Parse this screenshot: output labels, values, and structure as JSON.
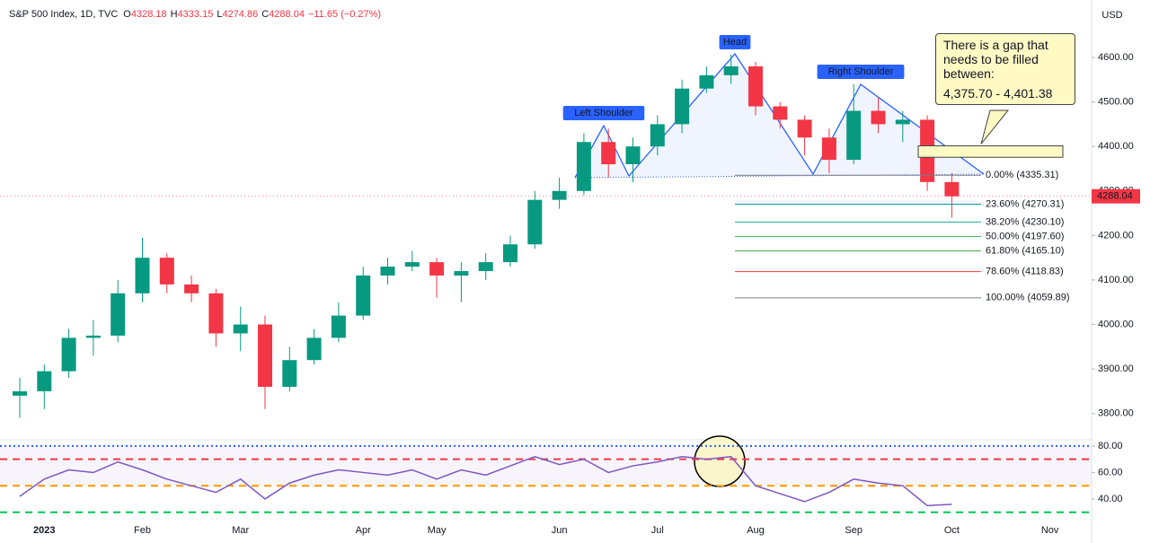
{
  "header": {
    "symbol": "S&P 500 Index, 1D, TVC",
    "ohlc": [
      {
        "label": "O",
        "value": "4328.18"
      },
      {
        "label": "H",
        "value": "4333.15"
      },
      {
        "label": "L",
        "value": "4274.86"
      },
      {
        "label": "C",
        "value": "4288.04"
      }
    ],
    "change": "−11.65 (−0.27%)",
    "currency": "USD"
  },
  "chart_data": [
    {
      "type": "candlestick",
      "categories": [
        null,
        "2023",
        null,
        null,
        null,
        "Feb",
        null,
        null,
        null,
        "Mar",
        null,
        null,
        null,
        null,
        "Apr",
        null,
        null,
        "May",
        null,
        null,
        null,
        null,
        "Jun",
        null,
        null,
        null,
        "Jul",
        null,
        null,
        null,
        "Aug",
        null,
        null,
        null,
        "Sep",
        null,
        null,
        null,
        "Oct",
        null,
        null,
        null,
        "Nov",
        null
      ],
      "open": [
        3840,
        3850,
        3895,
        3970,
        3975,
        4070,
        4150,
        4090,
        4070,
        3980,
        4000,
        3860,
        3920,
        3970,
        4020,
        4110,
        4130,
        4140,
        4110,
        4120,
        4140,
        4180,
        4280,
        4300,
        4410,
        4360,
        4400,
        4450,
        4530,
        4560,
        4580,
        4490,
        4460,
        4420,
        4370,
        4480,
        4450,
        4460,
        4320,
        null,
        null,
        null,
        null,
        null
      ],
      "high": [
        3880,
        3910,
        3990,
        4010,
        4100,
        4195,
        4160,
        4110,
        4080,
        4040,
        4020,
        3950,
        3990,
        4050,
        4130,
        4150,
        4165,
        4150,
        4140,
        4160,
        4200,
        4300,
        4330,
        4430,
        4440,
        4420,
        4470,
        4550,
        4580,
        4607,
        4590,
        4500,
        4470,
        4440,
        4540,
        4510,
        4480,
        4470,
        4340,
        null,
        null,
        null,
        null,
        null
      ],
      "low": [
        3790,
        3810,
        3880,
        3930,
        3960,
        4050,
        4070,
        4050,
        3950,
        3940,
        3810,
        3850,
        3910,
        3960,
        4010,
        4090,
        4120,
        4060,
        4050,
        4100,
        4130,
        4170,
        4260,
        4290,
        4330,
        4320,
        4380,
        4430,
        4520,
        4540,
        4470,
        4440,
        4380,
        4340,
        4360,
        4430,
        4410,
        4300,
        4240,
        null,
        null,
        null,
        null,
        null
      ],
      "close": [
        3850,
        3895,
        3970,
        3975,
        4070,
        4150,
        4090,
        4070,
        3980,
        4000,
        3860,
        3920,
        3970,
        4020,
        4110,
        4130,
        4140,
        4110,
        4120,
        4140,
        4180,
        4280,
        4300,
        4410,
        4360,
        4400,
        4450,
        4530,
        4560,
        4580,
        4490,
        4460,
        4420,
        4370,
        4480,
        4450,
        4460,
        4320,
        4288.04,
        null,
        null,
        null,
        null,
        null
      ],
      "up_color": "#089981",
      "down_color": "#f23645",
      "ylim": [
        3745,
        4729
      ],
      "yticks": [
        {
          "value": 3800,
          "label": "3800.00"
        },
        {
          "value": 3900,
          "label": "3900.00"
        },
        {
          "value": 4000,
          "label": "4000.00"
        },
        {
          "value": 4100,
          "label": "4100.00"
        },
        {
          "value": 4200,
          "label": "4200.00"
        },
        {
          "value": 4300,
          "label": "4300.00"
        },
        {
          "value": 4400,
          "label": "4400.00"
        },
        {
          "value": 4500,
          "label": "4500.00"
        },
        {
          "value": 4600,
          "label": "4600.00"
        }
      ],
      "last_price": {
        "value": 4288.04,
        "label": "4288.04"
      },
      "patterns": [
        "Left Shoulder",
        "Head",
        "Right Shoulder"
      ],
      "fib": [
        {
          "value": 4335.31,
          "label": "0.00% (4335.31)",
          "color": "#787b86"
        },
        {
          "value": 4270.31,
          "label": "23.60% (4270.31)",
          "color": "#0097a7"
        },
        {
          "value": 4230.1,
          "label": "38.20% (4230.10)",
          "color": "#22ab94"
        },
        {
          "value": 4197.6,
          "label": "50.00% (4197.60)",
          "color": "#4caf50"
        },
        {
          "value": 4165.1,
          "label": "61.80% (4165.10)",
          "color": "#43a047"
        },
        {
          "value": 4118.83,
          "label": "78.60% (4118.83)",
          "color": "#f23645"
        },
        {
          "value": 4059.89,
          "label": "100.00% (4059.89)",
          "color": "#787b86"
        }
      ],
      "gap": {
        "values": [
          4375.7,
          4401.38
        ],
        "text": "There is a gap that needs to be filled between:",
        "range_label": "4,375.70 - 4,401.38"
      }
    },
    {
      "type": "line",
      "values": [
        42,
        55,
        62,
        60,
        68,
        62,
        55,
        50,
        45,
        55,
        40,
        52,
        58,
        62,
        60,
        58,
        62,
        55,
        62,
        58,
        65,
        72,
        66,
        70,
        60,
        65,
        68,
        72,
        70,
        72,
        50,
        44,
        38,
        45,
        55,
        52,
        50,
        35,
        36,
        null,
        null,
        null,
        null,
        null
      ],
      "color": "#7e57c2",
      "ylim": [
        20.3,
        84.7
      ],
      "yticks": [
        {
          "value": 40,
          "label": "40.00"
        },
        {
          "value": 60,
          "label": "60.00"
        },
        {
          "value": 80,
          "label": "80.00"
        }
      ],
      "levels": [
        {
          "value": 80,
          "color": "#2962ff"
        },
        {
          "value": 70,
          "color": "#f23645"
        },
        {
          "value": 50,
          "color": "#ff9800"
        },
        {
          "value": 30,
          "color": "#00c853"
        }
      ]
    }
  ]
}
